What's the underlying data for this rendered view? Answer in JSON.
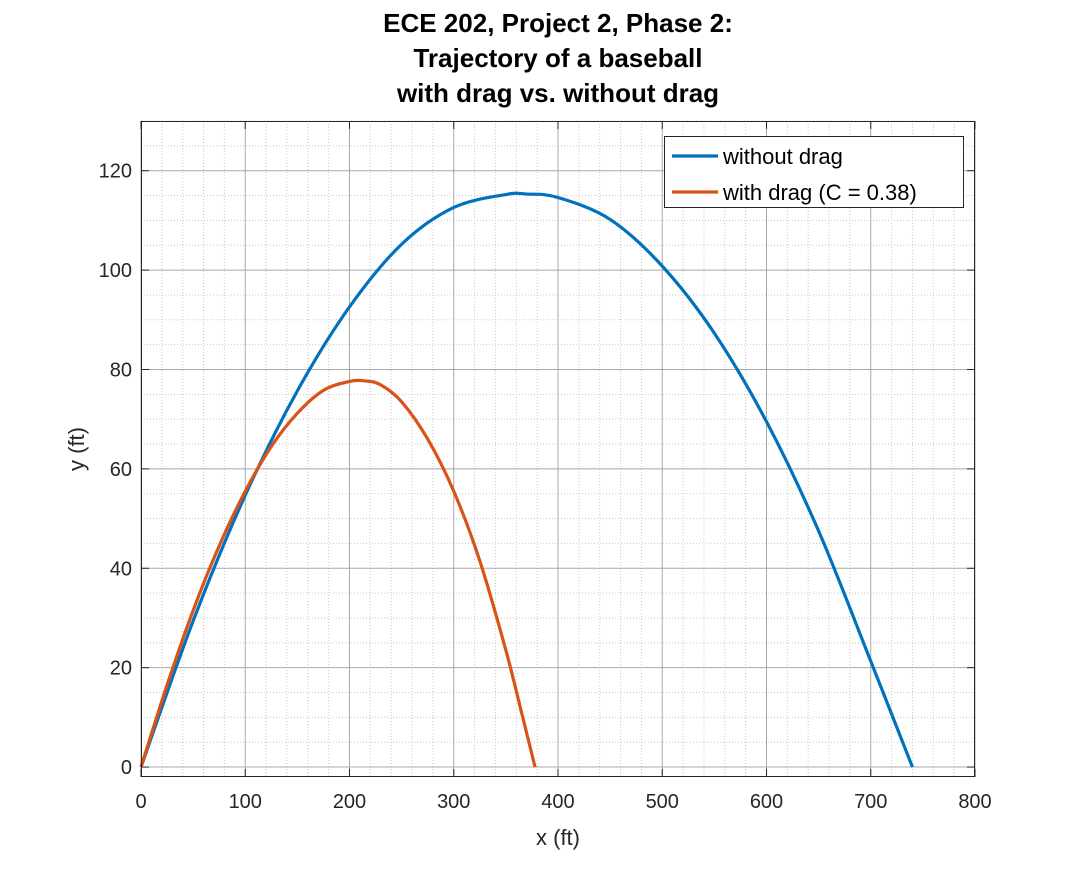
{
  "chart_data": {
    "type": "line",
    "title": [
      "ECE 202, Project 2, Phase 2:",
      "Trajectory of a baseball",
      "with drag vs. without drag"
    ],
    "xlabel": "x (ft)",
    "ylabel": "y (ft)",
    "xlim": [
      0,
      800
    ],
    "ylim": [
      -2,
      130
    ],
    "xticks": [
      0,
      100,
      200,
      300,
      400,
      500,
      600,
      700,
      800
    ],
    "yticks": [
      0,
      20,
      40,
      60,
      80,
      100,
      120
    ],
    "xtick_labels": [
      "0",
      "100",
      "200",
      "300",
      "400",
      "500",
      "600",
      "700",
      "800"
    ],
    "ytick_labels": [
      "0",
      "20",
      "40",
      "60",
      "80",
      "100",
      "120"
    ],
    "grid": true,
    "minor_grid": true,
    "legend_position": "top-right",
    "series": [
      {
        "name": "without drag",
        "color": "#0072BD",
        "x": [
          0,
          50,
          100,
          150,
          200,
          250,
          300,
          350,
          370,
          400,
          450,
          500,
          550,
          600,
          650,
          700,
          740
        ],
        "y": [
          0,
          29.4,
          54.7,
          75.7,
          92.6,
          105.2,
          112.6,
          115.2,
          115.3,
          114.6,
          110.2,
          100.8,
          87.3,
          69.5,
          47.5,
          21.3,
          0
        ]
      },
      {
        "name": "with drag (C = 0.38)",
        "color": "#D95319",
        "x": [
          0,
          25,
          50,
          75,
          100,
          125,
          150,
          175,
          200,
          215,
          230,
          250,
          275,
          300,
          325,
          350,
          365,
          378
        ],
        "y": [
          0,
          16.5,
          31.5,
          44.5,
          55.5,
          64.5,
          71.2,
          75.8,
          77.6,
          77.7,
          76.9,
          73.5,
          66.0,
          55.5,
          41.5,
          23.5,
          11.0,
          0
        ]
      }
    ]
  }
}
